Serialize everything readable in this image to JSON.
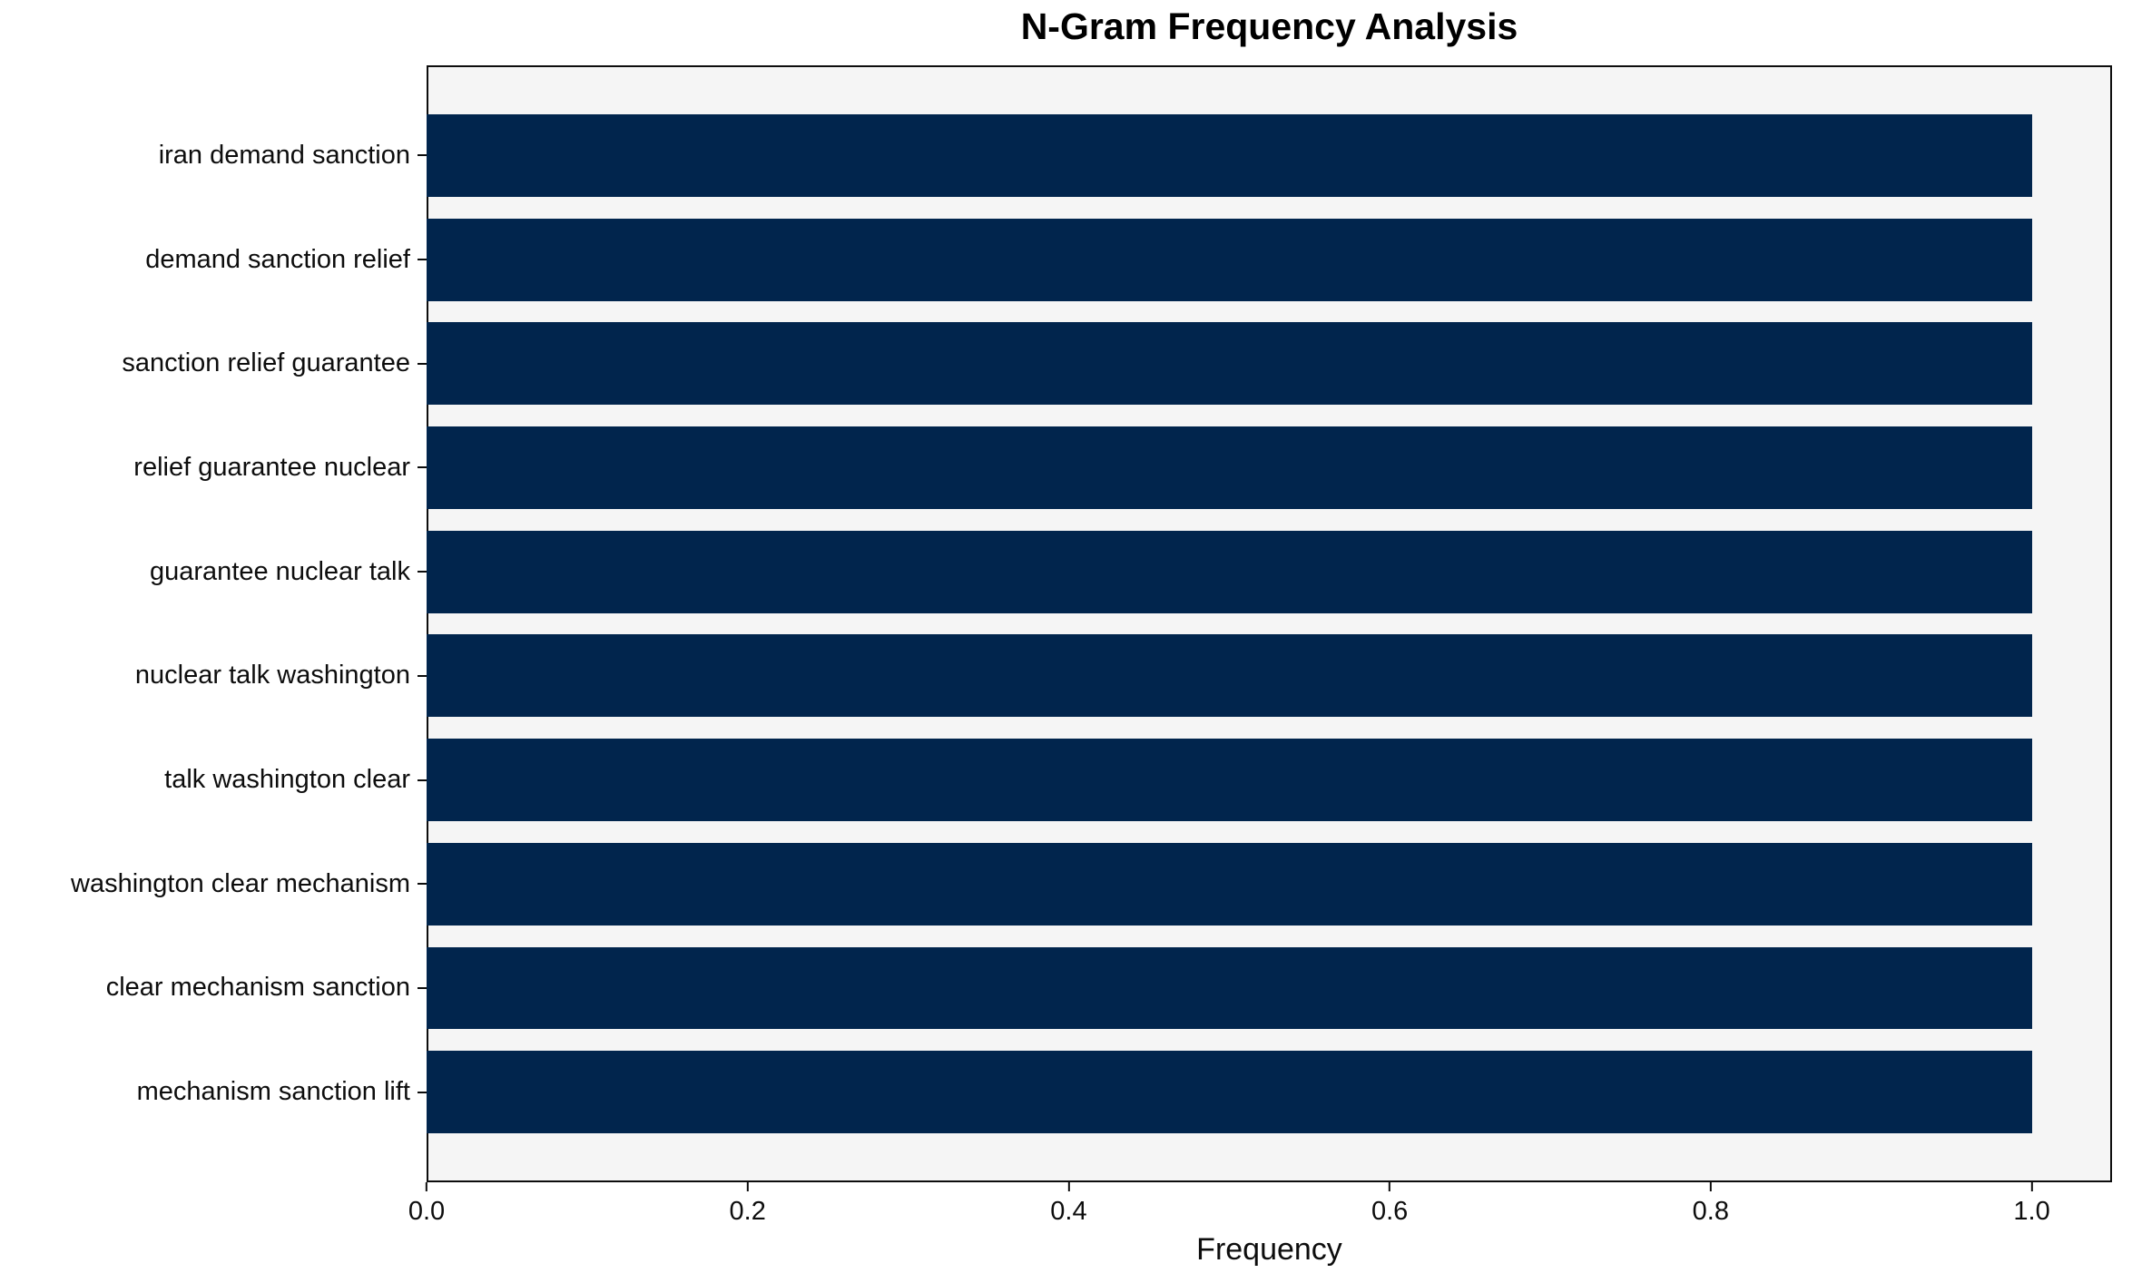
{
  "chart_data": {
    "type": "bar",
    "orientation": "horizontal",
    "title": "N-Gram Frequency Analysis",
    "xlabel": "Frequency",
    "ylabel": "",
    "categories": [
      "iran demand sanction",
      "demand sanction relief",
      "sanction relief guarantee",
      "relief guarantee nuclear",
      "guarantee nuclear talk",
      "nuclear talk washington",
      "talk washington clear",
      "washington clear mechanism",
      "clear mechanism sanction",
      "mechanism sanction lift"
    ],
    "values": [
      1.0,
      1.0,
      1.0,
      1.0,
      1.0,
      1.0,
      1.0,
      1.0,
      1.0,
      1.0
    ],
    "xlim": [
      0,
      1.05
    ],
    "x_ticks": [
      0.0,
      0.2,
      0.4,
      0.6,
      0.8,
      1.0
    ],
    "x_tick_labels": [
      "0.0",
      "0.2",
      "0.4",
      "0.6",
      "0.8",
      "1.0"
    ],
    "grid": false,
    "legend": "none",
    "bar_color": "#01254d",
    "plot_background": "#f5f5f5",
    "figure_background": "#ffffff",
    "spine_color": "#0d0d0d"
  }
}
